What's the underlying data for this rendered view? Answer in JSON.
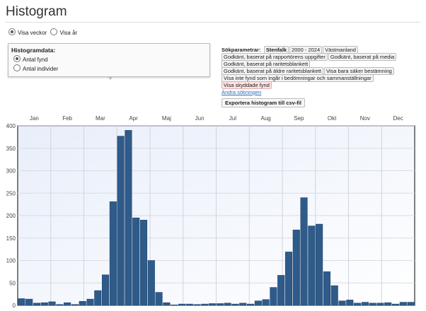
{
  "title": "Histogram",
  "view": {
    "weeks": "Visa veckor",
    "year": "Visa år"
  },
  "histdata": {
    "label": "Histogramdata:",
    "fynd": "Antal fynd",
    "individer": "Antal individer"
  },
  "params": {
    "label": "Sökparametrar:",
    "tags": [
      "Stenfalk",
      "2000 - 2024",
      "Västmanland",
      "Godkänt, baserat på rapportörens uppgifter",
      "Godkänt, baserat på media",
      "Godkänt, baserat på raritetsblankett",
      "Godkänt, baserat på äldre raritetsblankett",
      "Visa bara säker bestämning",
      "Visa inte fynd som ingår i bedömningar och sammanställningar",
      "Visa skyddade fynd"
    ],
    "change": "Ändra sökningen",
    "export": "Exportera histogram till csv-fil"
  },
  "colors": {
    "bar": "#2e5b8a"
  },
  "chart_data": {
    "type": "bar",
    "title": "",
    "xlabel": "",
    "ylabel": "",
    "ylim": [
      0,
      400
    ],
    "yticks": [
      0,
      50,
      100,
      150,
      200,
      250,
      300,
      350,
      400
    ],
    "months": [
      "Jan",
      "Feb",
      "Mar",
      "Apr",
      "Maj",
      "Jun",
      "Jul",
      "Aug",
      "Sep",
      "Okt",
      "Nov",
      "Dec"
    ],
    "categories": [
      "v1",
      "v2",
      "v3",
      "v4",
      "v5",
      "v6",
      "v7",
      "v8",
      "v9",
      "v10",
      "v11",
      "v12",
      "v13",
      "v14",
      "v15",
      "v16",
      "v17",
      "v18",
      "v19",
      "v20",
      "v21",
      "v22",
      "v23",
      "v24",
      "v25",
      "v26",
      "v27",
      "v28",
      "v29",
      "v30",
      "v31",
      "v32",
      "v33",
      "v34",
      "v35",
      "v36",
      "v37",
      "v38",
      "v39",
      "v40",
      "v41",
      "v42",
      "v43",
      "v44",
      "v45",
      "v46",
      "v47",
      "v48",
      "v49",
      "v50",
      "v51",
      "v52"
    ],
    "values": [
      15,
      14,
      5,
      6,
      8,
      2,
      6,
      2,
      9,
      14,
      33,
      68,
      231,
      377,
      390,
      195,
      190,
      100,
      29,
      6,
      1,
      3,
      3,
      2,
      3,
      4,
      4,
      5,
      3,
      5,
      3,
      10,
      13,
      40,
      67,
      119,
      168,
      240,
      177,
      181,
      75,
      44,
      10,
      12,
      5,
      7,
      5,
      5,
      6,
      3,
      7,
      7
    ]
  }
}
